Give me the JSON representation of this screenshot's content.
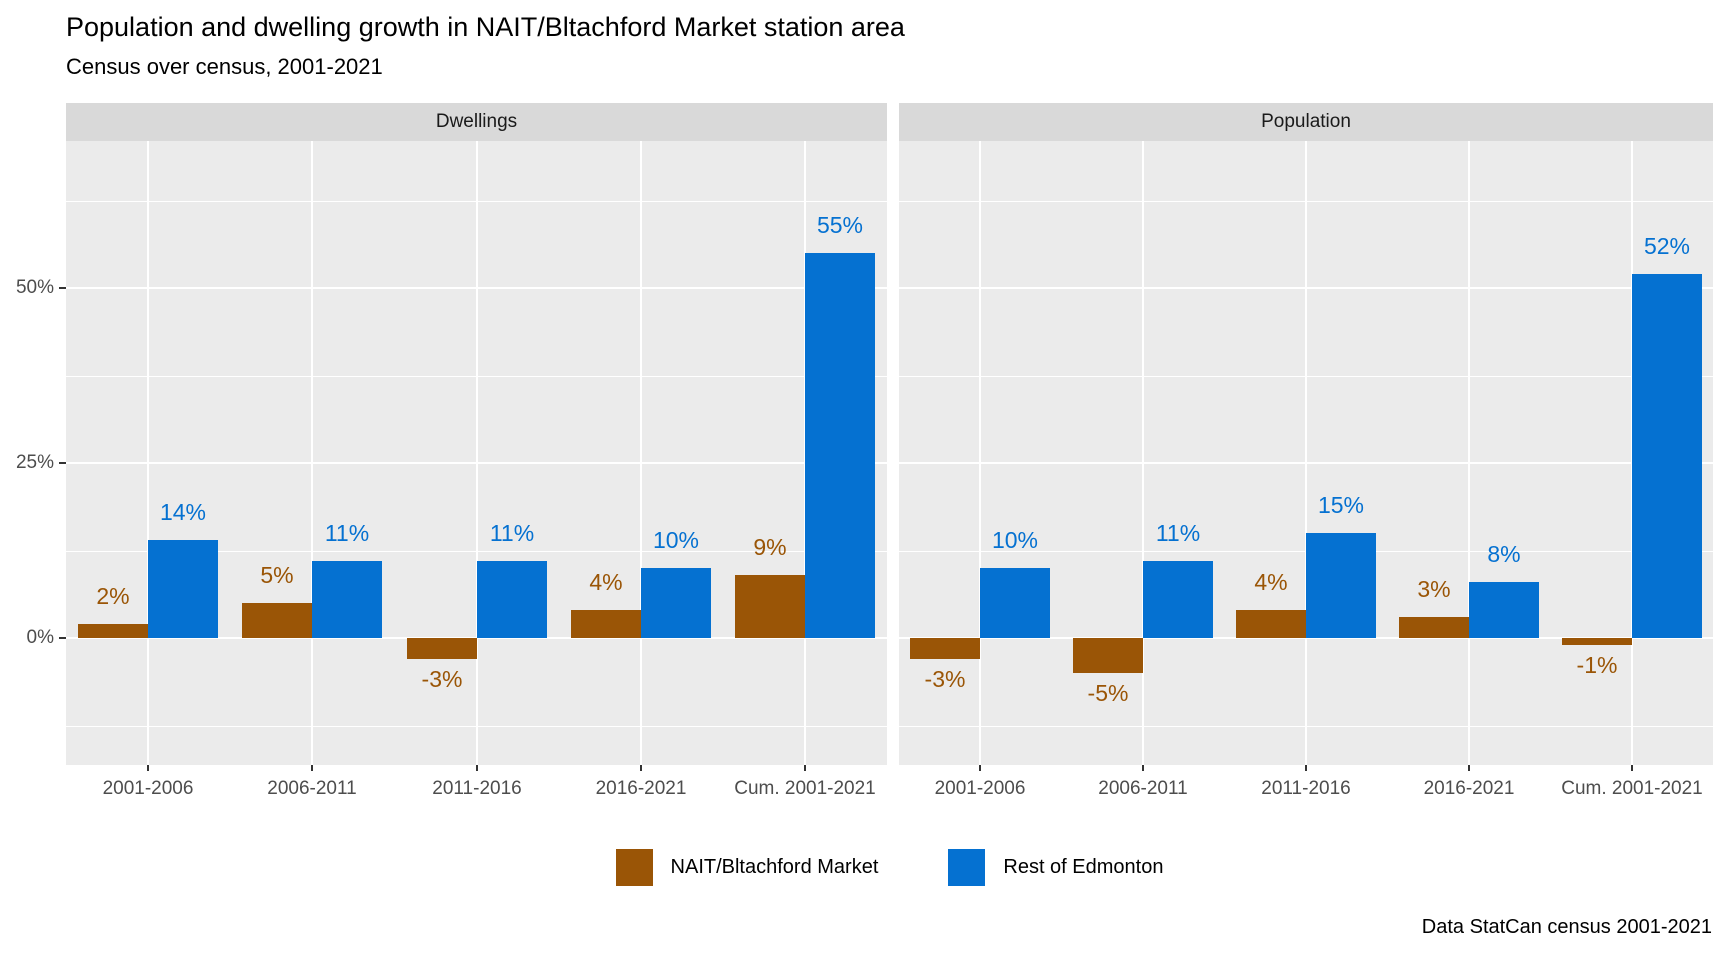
{
  "title": "Population and dwelling growth in NAIT/Bltachford Market station area",
  "subtitle": "Census over census, 2001-2021",
  "caption": "Data StatCan census 2001-2021",
  "chart_data": {
    "type": "bar",
    "title": "Population and dwelling growth in NAIT/Bltachford Market station area",
    "subtitle": "Census over census, 2001-2021",
    "caption": "Data StatCan census 2001-2021",
    "categories": [
      "2001-2006",
      "2006-2011",
      "2011-2016",
      "2016-2021",
      "Cum. 2001-2021"
    ],
    "facets": [
      {
        "label": "Dwellings",
        "series": [
          {
            "name": "NAIT/Bltachford Market",
            "values": [
              2,
              5,
              -3,
              4,
              9
            ]
          },
          {
            "name": "Rest of Edmonton",
            "values": [
              14,
              11,
              11,
              10,
              55
            ]
          }
        ]
      },
      {
        "label": "Population",
        "series": [
          {
            "name": "NAIT/Bltachford Market",
            "values": [
              -3,
              -5,
              4,
              3,
              -1
            ]
          },
          {
            "name": "Rest of Edmonton",
            "values": [
              10,
              11,
              15,
              8,
              52
            ]
          }
        ]
      }
    ],
    "value_label_suffix": "%",
    "xlabel": "",
    "ylabel": "",
    "y_ticks": [
      {
        "value": 0,
        "label": "0%"
      },
      {
        "value": 25,
        "label": "25%"
      },
      {
        "value": 50,
        "label": "50%"
      }
    ],
    "y_minor_ticks": [
      -12.5,
      12.5,
      37.5,
      62.5
    ],
    "ylim": [
      -18,
      71
    ],
    "grid": "on",
    "legend": {
      "position": "bottom",
      "items": [
        {
          "label": "NAIT/Bltachford Market",
          "color": "#9A5506"
        },
        {
          "label": "Rest of Edmonton",
          "color": "#0571D1"
        }
      ]
    },
    "colors": {
      "nait": "#9A5506",
      "rest": "#0571D1",
      "panel_bg": "#EBEBEB",
      "strip_bg": "#D9D9D9",
      "gridline": "#FFFFFF",
      "axis_text": "#4D4D4D",
      "tick_mark": "#333333"
    }
  }
}
